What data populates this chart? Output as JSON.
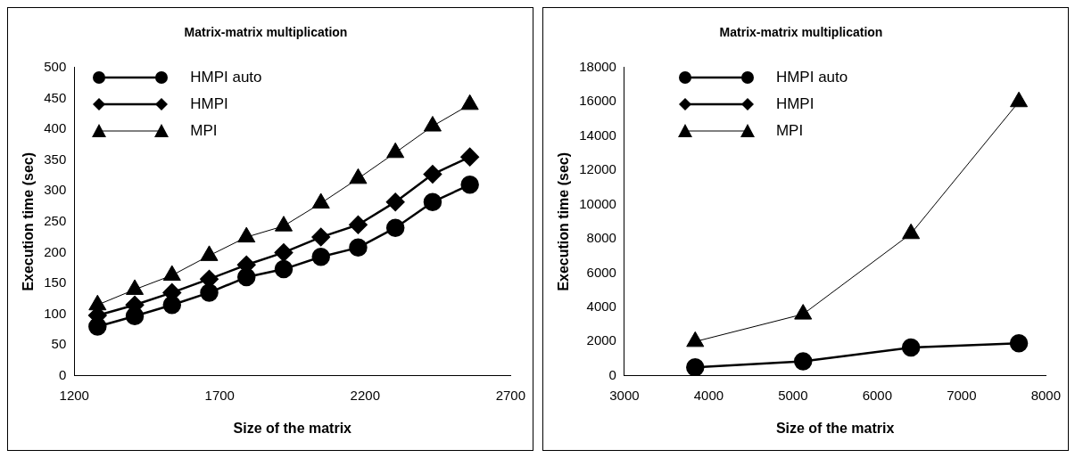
{
  "chart_data": [
    {
      "type": "line",
      "title": "Matrix-matrix multiplication",
      "xlabel": "Size of the matrix",
      "ylabel": "Execution time (sec)",
      "x": [
        1280,
        1408,
        1536,
        1664,
        1792,
        1920,
        2048,
        2176,
        2304,
        2432,
        2560
      ],
      "xlim": [
        1200,
        2700
      ],
      "xticks": [
        1200,
        1700,
        2200,
        2700
      ],
      "ylim": [
        0,
        500
      ],
      "yticks": [
        0,
        50,
        100,
        150,
        200,
        250,
        300,
        350,
        400,
        450,
        500
      ],
      "grid": false,
      "legend": "top left",
      "line_style": "solid",
      "series": [
        {
          "name": "HMPI auto",
          "color": "#000000",
          "marker": "circle",
          "values": [
            80,
            97,
            115,
            135,
            160,
            173,
            193,
            208,
            240,
            282,
            310
          ]
        },
        {
          "name": "HMPI",
          "color": "#000000",
          "marker": "diamond",
          "values": [
            98,
            115,
            135,
            157,
            180,
            200,
            225,
            245,
            282,
            327,
            355
          ]
        },
        {
          "name": "MPI",
          "color": "#000000",
          "marker": "triangle",
          "values": [
            115,
            140,
            163,
            195,
            225,
            243,
            280,
            320,
            362,
            405,
            440
          ]
        }
      ]
    },
    {
      "type": "line",
      "title": "Matrix-matrix multiplication",
      "xlabel": "Size of the matrix",
      "ylabel": "Execution time (sec)",
      "x": [
        3840,
        5120,
        6400,
        7680
      ],
      "xlim": [
        3000,
        8000
      ],
      "xticks": [
        3000,
        4000,
        5000,
        6000,
        7000,
        8000
      ],
      "ylim": [
        0,
        18000
      ],
      "yticks": [
        0,
        2000,
        4000,
        6000,
        8000,
        10000,
        12000,
        14000,
        16000,
        18000
      ],
      "grid": false,
      "legend": "top left",
      "line_style": "solid",
      "series": [
        {
          "name": "HMPI auto",
          "color": "#000000",
          "marker": "circle",
          "values": [
            500,
            850,
            1650,
            1900
          ]
        },
        {
          "name": "HMPI",
          "color": "#000000",
          "marker": "diamond",
          "values": [
            null,
            null,
            null,
            null
          ]
        },
        {
          "name": "MPI",
          "color": "#000000",
          "marker": "triangle",
          "values": [
            2000,
            3600,
            8300,
            16000
          ]
        }
      ]
    }
  ]
}
